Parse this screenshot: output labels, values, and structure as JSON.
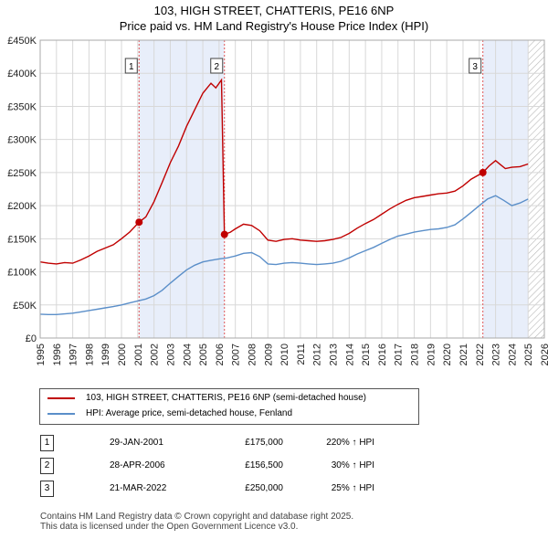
{
  "title_line1": "103, HIGH STREET, CHATTERIS, PE16 6NP",
  "title_line2": "Price paid vs. HM Land Registry's House Price Index (HPI)",
  "chart_data": {
    "type": "line",
    "x_range": [
      1995,
      2026
    ],
    "ylim": [
      0,
      450000
    ],
    "y_ticks": [
      {
        "value": 0,
        "label": "£0"
      },
      {
        "value": 50000,
        "label": "£50K"
      },
      {
        "value": 100000,
        "label": "£100K"
      },
      {
        "value": 150000,
        "label": "£150K"
      },
      {
        "value": 200000,
        "label": "£200K"
      },
      {
        "value": 250000,
        "label": "£250K"
      },
      {
        "value": 300000,
        "label": "£300K"
      },
      {
        "value": 350000,
        "label": "£350K"
      },
      {
        "value": 400000,
        "label": "£400K"
      },
      {
        "value": 450000,
        "label": "£450K"
      }
    ],
    "x_ticks": [
      "1995",
      "1996",
      "1997",
      "1998",
      "1999",
      "2000",
      "2001",
      "2002",
      "2003",
      "2004",
      "2005",
      "2006",
      "2007",
      "2008",
      "2009",
      "2010",
      "2011",
      "2012",
      "2013",
      "2014",
      "2015",
      "2016",
      "2017",
      "2018",
      "2019",
      "2020",
      "2021",
      "2022",
      "2023",
      "2024",
      "2025",
      "2026"
    ],
    "grid": true,
    "forecast_start": 2025.0,
    "series": [
      {
        "name": "103, HIGH STREET, CHATTERIS, PE16 6NP (semi-detached house)",
        "color": "#c00000",
        "points": [
          [
            1995.0,
            115000
          ],
          [
            1995.5,
            113000
          ],
          [
            1996.0,
            112000
          ],
          [
            1996.5,
            114000
          ],
          [
            1997.0,
            113000
          ],
          [
            1997.5,
            118000
          ],
          [
            1998.0,
            124000
          ],
          [
            1998.5,
            131000
          ],
          [
            1999.0,
            136000
          ],
          [
            1999.5,
            141000
          ],
          [
            2000.0,
            150000
          ],
          [
            2000.5,
            160000
          ],
          [
            2001.08,
            175000
          ],
          [
            2001.5,
            183000
          ],
          [
            2002.0,
            206000
          ],
          [
            2002.5,
            235000
          ],
          [
            2003.0,
            265000
          ],
          [
            2003.5,
            290000
          ],
          [
            2004.0,
            320000
          ],
          [
            2004.5,
            345000
          ],
          [
            2005.0,
            370000
          ],
          [
            2005.5,
            385000
          ],
          [
            2005.8,
            378000
          ],
          [
            2006.15,
            390000
          ],
          [
            2006.33,
            156500
          ],
          [
            2006.7,
            160000
          ],
          [
            2007.0,
            165000
          ],
          [
            2007.5,
            172000
          ],
          [
            2008.0,
            170000
          ],
          [
            2008.5,
            162000
          ],
          [
            2009.0,
            148000
          ],
          [
            2009.5,
            146000
          ],
          [
            2010.0,
            149000
          ],
          [
            2010.5,
            150000
          ],
          [
            2011.0,
            148000
          ],
          [
            2011.5,
            147000
          ],
          [
            2012.0,
            146000
          ],
          [
            2012.5,
            147000
          ],
          [
            2013.0,
            149000
          ],
          [
            2013.5,
            152000
          ],
          [
            2014.0,
            158000
          ],
          [
            2014.5,
            166000
          ],
          [
            2015.0,
            173000
          ],
          [
            2015.5,
            179000
          ],
          [
            2016.0,
            187000
          ],
          [
            2016.5,
            195000
          ],
          [
            2017.0,
            202000
          ],
          [
            2017.5,
            208000
          ],
          [
            2018.0,
            212000
          ],
          [
            2018.5,
            214000
          ],
          [
            2019.0,
            216000
          ],
          [
            2019.5,
            218000
          ],
          [
            2020.0,
            219000
          ],
          [
            2020.5,
            222000
          ],
          [
            2021.0,
            230000
          ],
          [
            2021.5,
            240000
          ],
          [
            2022.22,
            250000
          ],
          [
            2022.6,
            260000
          ],
          [
            2023.0,
            268000
          ],
          [
            2023.3,
            262000
          ],
          [
            2023.6,
            256000
          ],
          [
            2024.0,
            258000
          ],
          [
            2024.5,
            259000
          ],
          [
            2025.0,
            263000
          ]
        ]
      },
      {
        "name": "HPI: Average price, semi-detached house, Fenland",
        "color": "#5b8fc9",
        "points": [
          [
            1995.0,
            36000
          ],
          [
            1995.5,
            35500
          ],
          [
            1996.0,
            35500
          ],
          [
            1996.5,
            36500
          ],
          [
            1997.0,
            37500
          ],
          [
            1997.5,
            39500
          ],
          [
            1998.0,
            41500
          ],
          [
            1998.5,
            43500
          ],
          [
            1999.0,
            45500
          ],
          [
            1999.5,
            47500
          ],
          [
            2000.0,
            50000
          ],
          [
            2000.5,
            53000
          ],
          [
            2001.0,
            56000
          ],
          [
            2001.5,
            59000
          ],
          [
            2002.0,
            64000
          ],
          [
            2002.5,
            72000
          ],
          [
            2003.0,
            83000
          ],
          [
            2003.5,
            93000
          ],
          [
            2004.0,
            103000
          ],
          [
            2004.5,
            110000
          ],
          [
            2005.0,
            115000
          ],
          [
            2005.5,
            117500
          ],
          [
            2006.0,
            119500
          ],
          [
            2006.5,
            121000
          ],
          [
            2007.0,
            124000
          ],
          [
            2007.5,
            128000
          ],
          [
            2008.0,
            129000
          ],
          [
            2008.5,
            123000
          ],
          [
            2009.0,
            112000
          ],
          [
            2009.5,
            111000
          ],
          [
            2010.0,
            113000
          ],
          [
            2010.5,
            114000
          ],
          [
            2011.0,
            113000
          ],
          [
            2011.5,
            112000
          ],
          [
            2012.0,
            111000
          ],
          [
            2012.5,
            112000
          ],
          [
            2013.0,
            113000
          ],
          [
            2013.5,
            116000
          ],
          [
            2014.0,
            121000
          ],
          [
            2014.5,
            127000
          ],
          [
            2015.0,
            132000
          ],
          [
            2015.5,
            137000
          ],
          [
            2016.0,
            143000
          ],
          [
            2016.5,
            149000
          ],
          [
            2017.0,
            154000
          ],
          [
            2017.5,
            157000
          ],
          [
            2018.0,
            160000
          ],
          [
            2018.5,
            162000
          ],
          [
            2019.0,
            164000
          ],
          [
            2019.5,
            165000
          ],
          [
            2020.0,
            167000
          ],
          [
            2020.5,
            171000
          ],
          [
            2021.0,
            180000
          ],
          [
            2021.5,
            190000
          ],
          [
            2022.0,
            200000
          ],
          [
            2022.5,
            210000
          ],
          [
            2023.0,
            215000
          ],
          [
            2023.5,
            208000
          ],
          [
            2024.0,
            200000
          ],
          [
            2024.5,
            204000
          ],
          [
            2025.0,
            210000
          ]
        ]
      }
    ],
    "annotations": [
      {
        "label": "1",
        "x": 2001.08,
        "value": 175000
      },
      {
        "label": "2",
        "x": 2006.33,
        "value": 156500
      },
      {
        "label": "3",
        "x": 2022.22,
        "value": 250000
      }
    ],
    "shaded_periods": [
      [
        2001.08,
        2006.33
      ],
      [
        2022.22,
        2025.0
      ]
    ]
  },
  "legend": [
    {
      "label": "103, HIGH STREET, CHATTERIS, PE16 6NP (semi-detached house)",
      "color": "#c00000"
    },
    {
      "label": "HPI: Average price, semi-detached house, Fenland",
      "color": "#5b8fc9"
    }
  ],
  "transactions": [
    {
      "num": "1",
      "date": "29-JAN-2001",
      "price": "£175,000",
      "hpi": "220% ↑ HPI"
    },
    {
      "num": "2",
      "date": "28-APR-2006",
      "price": "£156,500",
      "hpi": "30% ↑ HPI"
    },
    {
      "num": "3",
      "date": "21-MAR-2022",
      "price": "£250,000",
      "hpi": "25% ↑ HPI"
    }
  ],
  "footer_line1": "Contains HM Land Registry data © Crown copyright and database right 2025.",
  "footer_line2": "This data is licensed under the Open Government Licence v3.0."
}
